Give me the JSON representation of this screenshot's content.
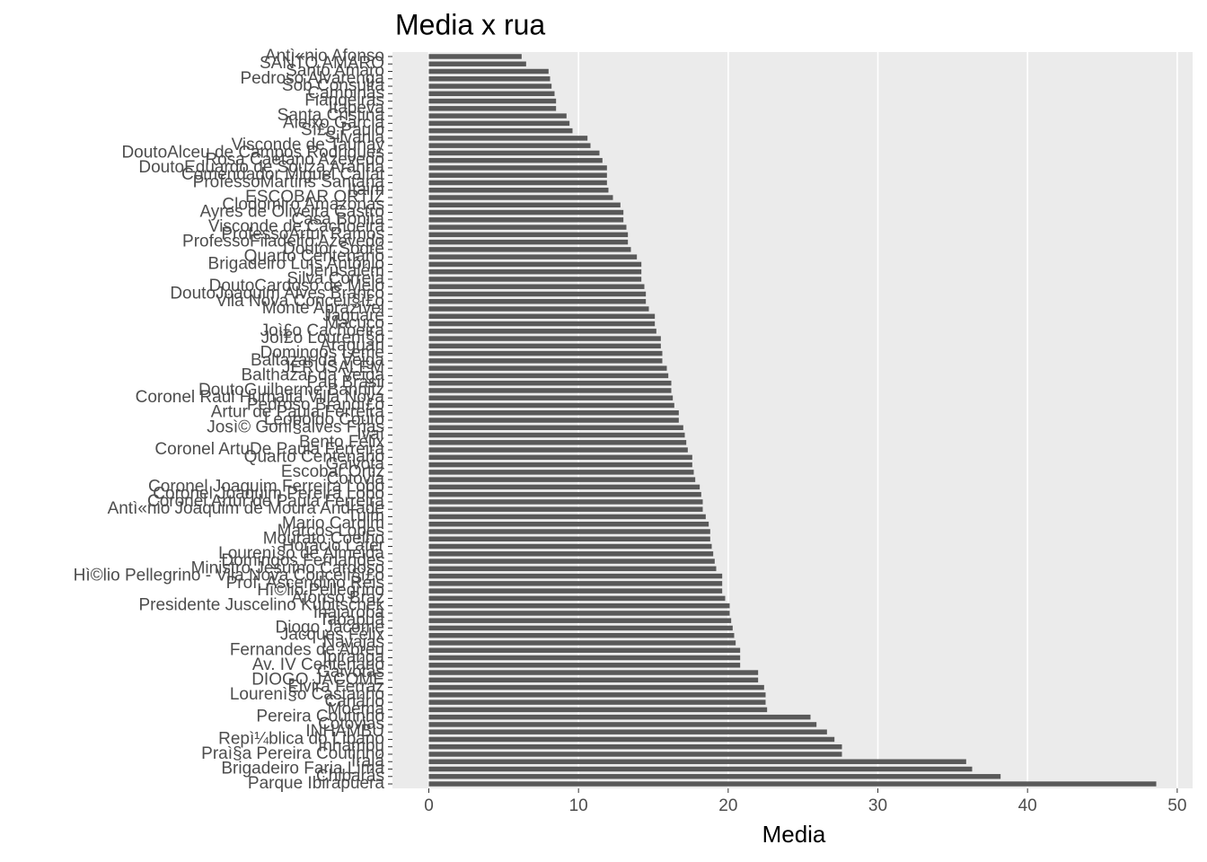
{
  "chart_data": {
    "type": "barh",
    "title": "Media x  rua",
    "xlabel": "Media",
    "categories": [
      "Antì«nio Afonso",
      "SANTO AMARO",
      "Santo Amaro",
      "Pedroso Alvarenga",
      "Sob Consulta",
      "Campinas",
      "Fiandeiras",
      "Itapeva",
      "Santa Cristina",
      "Aleixo Garcia",
      "Sì£o Paulo",
      "Silvania",
      "Visconde de Taunay",
      "DoutoAlceu de Campos Rodrigues",
      "Rosa Caetano Azevedo",
      "DoutoEduardo de Souza Aranha",
      "Comendador Miguel Calfat",
      "ProfessoMartins Santana",
      "Itaim",
      "ESCOBAR ORTIZ",
      "Clodomiro Amazonas",
      "Ayres de Oliveira Castro",
      "Casa Bonita",
      "Visconde de Cachoeira",
      "ProfessoArtur Ramos",
      "ProfessoFiladelfo Azevedo",
      "Doutor Sodré",
      "Quarto Centenário",
      "Brigadeiro Luís Antônio",
      "Jerusalém",
      "Silva Correia",
      "DoutoCardoso de Melo",
      "DoutoJoaquim Alves Branco",
      "Vila Nova Conceiì§ì£o",
      "Monte Aprazível",
      "Jaguaré",
      "Macuco",
      "Joì£o Cachoeira",
      "Joì£o Lourenì§o",
      "Araguari",
      "Domingos Leme",
      "Baltazar da Veiga",
      "JERUSALEM",
      "Balthazar da Veiga",
      "Pau Brasil",
      "DoutoGuilherme Bannitz",
      "Coronel Raul Humaitá Villa Nova",
      "Pedroso Brandì£o",
      "Artur de Paula Ferreira",
      "Leopoldo Couto",
      "Josì© Gonì§alves Frias",
      "Ivaí",
      "Bento Félix",
      "Coronel ArtuDe Paula Ferreira",
      "Quarto Centenario",
      "Gaivota",
      "Escobar Ortiz",
      "Cotovia",
      "Coronel Joaquim Ferreira Lobo",
      "Coronel Joaquim Pereira Lobo",
      "Coronel Artur de Paula Ferreira",
      "Antì«nio Joaquim de Moura Andrade",
      "Tuim",
      "Mario Cardim",
      "Marcos Lopes",
      "Mourato Coelho",
      "Horácio Lafer",
      "Lourenì§o de Almeida",
      "Domingos Fernandes",
      "Ministro Jesuíno Cardoso",
      "Hì©lio Pellegrino - Vila Nova Conceiì§ì£o",
      "Prof. Ascendino Reis",
      "Hì©lio Pellegrino",
      "Afonso Braz",
      "Presidente Juscelino Kubitschek",
      "Inajaroba",
      "Tabapuã",
      "Diogo Jacome",
      "Jacques Félix",
      "Navajas",
      "Fernandes de Abreu",
      "Ipiranga",
      "Av. IV Centenário",
      "Gaivotas",
      "DIOGO JACOME",
      "Elvira Ferraz",
      "Lourenì§o Castanho",
      "Canário",
      "Moema",
      "Pereira Coutinho",
      "Cotovias",
      "INHAMBU",
      "Repì¼blica do Líbano",
      "Inhambu",
      "Praì§a Pereira Coutinho",
      "Irajá",
      "Brigadeiro Faria Lima",
      "Chibarás",
      "Parque Ibirapuera"
    ],
    "values": [
      6.2,
      6.5,
      8.0,
      8.1,
      8.2,
      8.4,
      8.5,
      8.5,
      9.2,
      9.4,
      9.6,
      10.6,
      10.8,
      11.4,
      11.6,
      11.9,
      11.9,
      11.9,
      12.0,
      12.3,
      12.8,
      13.0,
      13.0,
      13.2,
      13.3,
      13.3,
      13.5,
      13.9,
      14.2,
      14.2,
      14.2,
      14.4,
      14.5,
      14.5,
      14.7,
      15.1,
      15.1,
      15.2,
      15.5,
      15.5,
      15.6,
      15.6,
      15.9,
      16.0,
      16.2,
      16.2,
      16.3,
      16.4,
      16.7,
      16.7,
      17.0,
      17.1,
      17.2,
      17.3,
      17.6,
      17.6,
      17.7,
      17.8,
      18.1,
      18.2,
      18.3,
      18.3,
      18.5,
      18.7,
      18.8,
      18.8,
      18.9,
      19.0,
      19.1,
      19.2,
      19.6,
      19.6,
      19.6,
      19.8,
      20.1,
      20.1,
      20.2,
      20.3,
      20.4,
      20.5,
      20.8,
      20.8,
      20.8,
      22.0,
      22.0,
      22.4,
      22.5,
      22.5,
      22.6,
      25.5,
      25.9,
      26.6,
      27.1,
      27.6,
      27.6,
      35.9,
      36.3,
      38.2,
      48.6
    ],
    "color": "#595959",
    "xlim": [
      -2.43,
      51.03
    ],
    "xticks": [
      0,
      10,
      20,
      30,
      40,
      50
    ],
    "grid": true
  }
}
